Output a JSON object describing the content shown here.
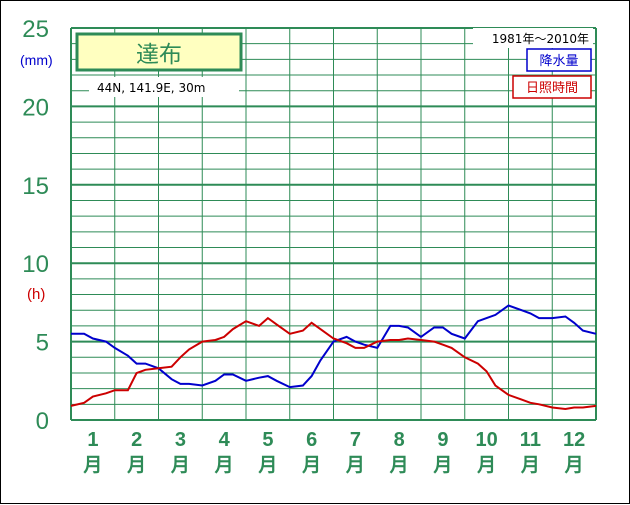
{
  "chart_data": {
    "type": "line",
    "title": "達布",
    "location": "44N, 141.9E, 30m",
    "period": "1981年〜2010年",
    "y_unit_left": "(mm)",
    "y_unit_right": "(h)",
    "ylim": [
      0,
      25
    ],
    "y_ticks": [
      "0",
      "5",
      "10",
      "15",
      "20",
      "25"
    ],
    "months": [
      "1",
      "2",
      "3",
      "4",
      "5",
      "6",
      "7",
      "8",
      "9",
      "10",
      "11",
      "12"
    ],
    "month_suffix": "月",
    "xlim": [
      0.5,
      12.5
    ],
    "colors": {
      "precip": "#0000cc",
      "sunshine": "#cc0000",
      "grid": "#2e8b57",
      "title_box_fill": "#ffffc0"
    },
    "series": [
      {
        "name": "降水量",
        "x": [
          0.5,
          0.8,
          1.0,
          1.3,
          1.5,
          1.8,
          2.0,
          2.2,
          2.5,
          2.8,
          3.0,
          3.2,
          3.5,
          3.8,
          4.0,
          4.2,
          4.5,
          4.8,
          5.0,
          5.2,
          5.5,
          5.8,
          6.0,
          6.2,
          6.5,
          6.8,
          7.0,
          7.2,
          7.5,
          7.8,
          8.0,
          8.2,
          8.5,
          8.8,
          9.0,
          9.2,
          9.5,
          9.8,
          10.0,
          10.2,
          10.5,
          10.8,
          11.0,
          11.2,
          11.5,
          11.8,
          12.0,
          12.2,
          12.5
        ],
        "y": [
          5.5,
          5.5,
          5.2,
          5.0,
          4.6,
          4.1,
          3.6,
          3.6,
          3.3,
          2.6,
          2.3,
          2.3,
          2.2,
          2.5,
          2.9,
          2.9,
          2.5,
          2.7,
          2.8,
          2.5,
          2.1,
          2.2,
          2.8,
          3.8,
          5.0,
          5.3,
          5.0,
          4.8,
          4.6,
          6.0,
          6.0,
          5.9,
          5.3,
          5.9,
          5.9,
          5.5,
          5.2,
          6.3,
          6.5,
          6.7,
          7.3,
          7.0,
          6.8,
          6.5,
          6.5,
          6.6,
          6.2,
          5.7,
          5.5
        ]
      },
      {
        "name": "日照時間",
        "x": [
          0.5,
          0.8,
          1.0,
          1.3,
          1.5,
          1.8,
          2.0,
          2.2,
          2.5,
          2.8,
          3.0,
          3.2,
          3.5,
          3.8,
          4.0,
          4.2,
          4.5,
          4.8,
          5.0,
          5.2,
          5.5,
          5.8,
          6.0,
          6.2,
          6.5,
          6.8,
          7.0,
          7.2,
          7.5,
          7.8,
          8.0,
          8.2,
          8.5,
          8.8,
          9.0,
          9.2,
          9.5,
          9.8,
          10.0,
          10.2,
          10.5,
          10.8,
          11.0,
          11.2,
          11.5,
          11.8,
          12.0,
          12.2,
          12.5
        ],
        "y": [
          0.9,
          1.1,
          1.5,
          1.7,
          1.9,
          1.9,
          3.0,
          3.2,
          3.3,
          3.4,
          4.0,
          4.5,
          5.0,
          5.1,
          5.3,
          5.8,
          6.3,
          6.0,
          6.5,
          6.1,
          5.5,
          5.7,
          6.2,
          5.8,
          5.2,
          4.9,
          4.6,
          4.6,
          5.0,
          5.1,
          5.1,
          5.2,
          5.1,
          5.0,
          4.8,
          4.6,
          4.0,
          3.6,
          3.1,
          2.2,
          1.6,
          1.3,
          1.1,
          1.0,
          0.8,
          0.7,
          0.8,
          0.8,
          0.9
        ]
      }
    ]
  }
}
